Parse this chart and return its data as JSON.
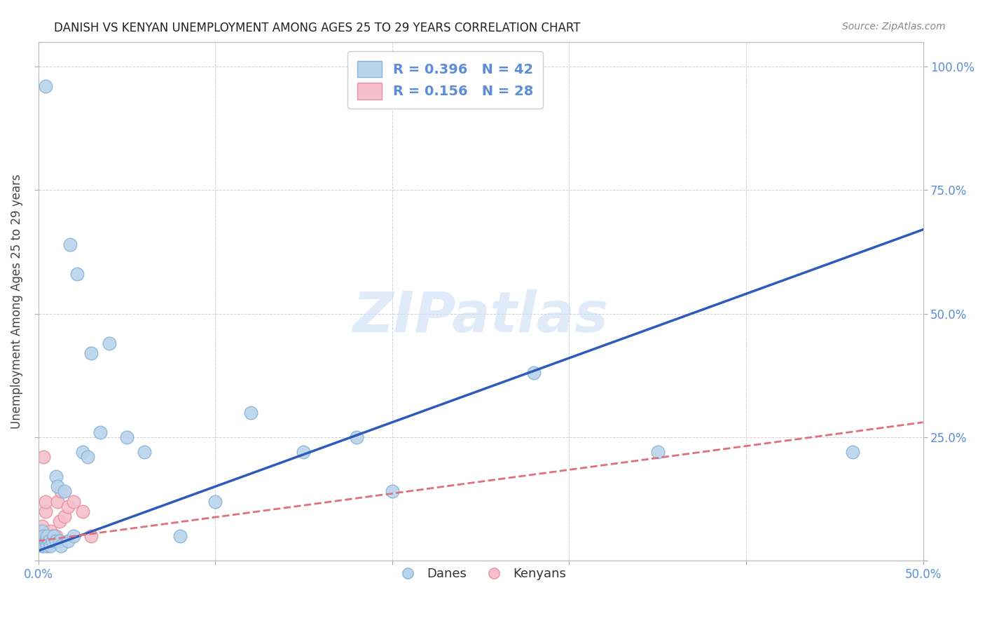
{
  "title": "DANISH VS KENYAN UNEMPLOYMENT AMONG AGES 25 TO 29 YEARS CORRELATION CHART",
  "source": "Source: ZipAtlas.com",
  "ylabel": "Unemployment Among Ages 25 to 29 years",
  "xlim": [
    0.0,
    0.5
  ],
  "ylim": [
    0.0,
    1.05
  ],
  "xticks": [
    0.0,
    0.1,
    0.2,
    0.3,
    0.4,
    0.5
  ],
  "xtick_labels": [
    "0.0%",
    "",
    "",
    "",
    "",
    "50.0%"
  ],
  "yticks_right": [
    0.0,
    0.25,
    0.5,
    0.75,
    1.0
  ],
  "ytick_labels_right": [
    "",
    "25.0%",
    "50.0%",
    "75.0%",
    "100.0%"
  ],
  "grid_color": "#d0d0d0",
  "background_color": "#ffffff",
  "danes_color": "#b8d4ed",
  "danes_edge_color": "#89b4d8",
  "kenyans_color": "#f5c0cb",
  "kenyans_edge_color": "#e8909f",
  "danes_line_color": "#2e5bba",
  "kenyans_line_color": "#e07080",
  "watermark_text": "ZIPatlas",
  "title_color": "#222222",
  "source_color": "#888888",
  "tick_label_color": "#5b8dd9",
  "ylabel_color": "#444444",
  "legend_text_color": "#5b8dd9",
  "danes_x": [
    0.001,
    0.002,
    0.002,
    0.002,
    0.003,
    0.003,
    0.003,
    0.004,
    0.004,
    0.005,
    0.005,
    0.005,
    0.006,
    0.007,
    0.008,
    0.009,
    0.01,
    0.01,
    0.011,
    0.012,
    0.013,
    0.015,
    0.017,
    0.018,
    0.02,
    0.022,
    0.025,
    0.028,
    0.03,
    0.035,
    0.04,
    0.05,
    0.06,
    0.08,
    0.1,
    0.12,
    0.15,
    0.18,
    0.2,
    0.28,
    0.35,
    0.46
  ],
  "danes_y": [
    0.04,
    0.03,
    0.05,
    0.06,
    0.04,
    0.05,
    0.03,
    0.04,
    0.96,
    0.04,
    0.05,
    0.03,
    0.04,
    0.03,
    0.04,
    0.05,
    0.04,
    0.17,
    0.15,
    0.04,
    0.03,
    0.14,
    0.04,
    0.64,
    0.05,
    0.58,
    0.22,
    0.21,
    0.42,
    0.26,
    0.44,
    0.25,
    0.22,
    0.05,
    0.12,
    0.3,
    0.22,
    0.25,
    0.14,
    0.38,
    0.22,
    0.22
  ],
  "kenyans_x": [
    0.001,
    0.001,
    0.001,
    0.002,
    0.002,
    0.002,
    0.003,
    0.003,
    0.003,
    0.004,
    0.004,
    0.004,
    0.005,
    0.005,
    0.006,
    0.006,
    0.007,
    0.008,
    0.009,
    0.01,
    0.011,
    0.012,
    0.013,
    0.015,
    0.017,
    0.02,
    0.025,
    0.03
  ],
  "kenyans_y": [
    0.04,
    0.05,
    0.06,
    0.04,
    0.05,
    0.07,
    0.04,
    0.05,
    0.21,
    0.04,
    0.1,
    0.12,
    0.05,
    0.03,
    0.04,
    0.05,
    0.06,
    0.05,
    0.04,
    0.05,
    0.12,
    0.08,
    0.14,
    0.09,
    0.11,
    0.12,
    0.1,
    0.05
  ],
  "danes_line_x": [
    0.0,
    0.5
  ],
  "danes_line_y": [
    0.02,
    0.67
  ],
  "kenyans_line_x": [
    0.0,
    0.5
  ],
  "kenyans_line_y": [
    0.04,
    0.28
  ]
}
